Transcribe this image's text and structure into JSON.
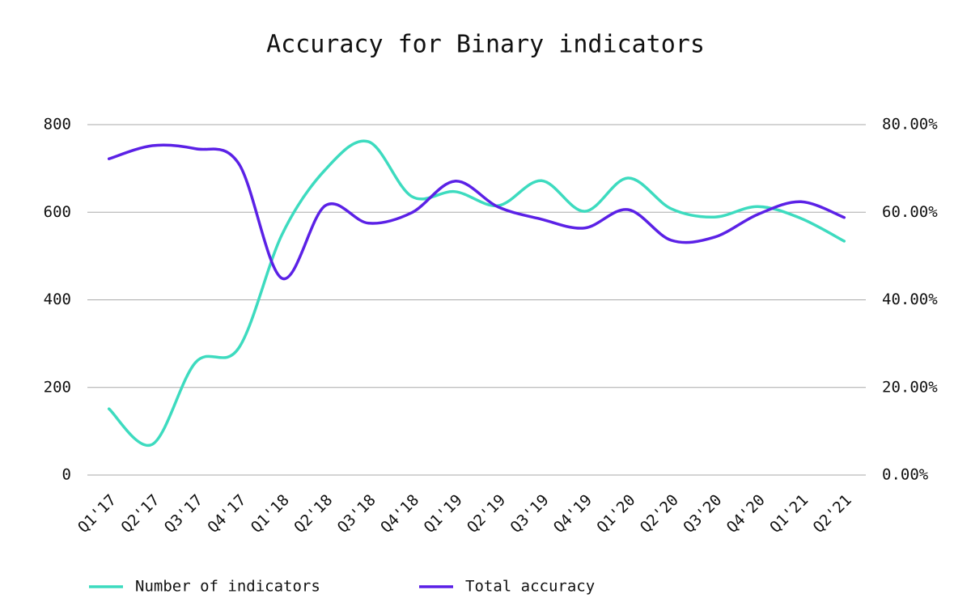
{
  "chart_data": {
    "type": "line",
    "title": "Accuracy for Binary indicators",
    "categories": [
      "Q1'17",
      "Q2'17",
      "Q3'17",
      "Q4'17",
      "Q1'18",
      "Q2'18",
      "Q3'18",
      "Q4'18",
      "Q1'19",
      "Q2'19",
      "Q3'19",
      "Q4'19",
      "Q1'20",
      "Q2'20",
      "Q3'20",
      "Q4'20",
      "Q1'21",
      "Q2'21"
    ],
    "series": [
      {
        "name": "Number of indicators",
        "color": "#3ddbbf",
        "values": [
          151,
          70,
          257,
          290,
          549,
          697,
          761,
          636,
          647,
          615,
          672,
          602,
          678,
          608,
          589,
          613,
          586,
          534
        ]
      },
      {
        "name": "Total accuracy",
        "color": "#5b21e6",
        "axis": "y2",
        "values": [
          72.2,
          75.2,
          74.5,
          71.1,
          44.9,
          61.5,
          57.5,
          59.9,
          67.1,
          61.2,
          58.4,
          56.4,
          60.6,
          53.6,
          54.3,
          59.5,
          62.4,
          58.8
        ]
      }
    ],
    "ylim": [
      0,
      800
    ],
    "yticks": [
      0,
      200,
      400,
      600,
      800
    ],
    "y2lim": [
      0,
      80
    ],
    "y2ticks": [
      {
        "value": 0,
        "label": "0.00%"
      },
      {
        "value": 20,
        "label": "20.00%"
      },
      {
        "value": 40,
        "label": "40.00%"
      },
      {
        "value": 60,
        "label": "60.00%"
      },
      {
        "value": 80,
        "label": "80.00%"
      }
    ],
    "grid": true,
    "legend": "bottom"
  }
}
